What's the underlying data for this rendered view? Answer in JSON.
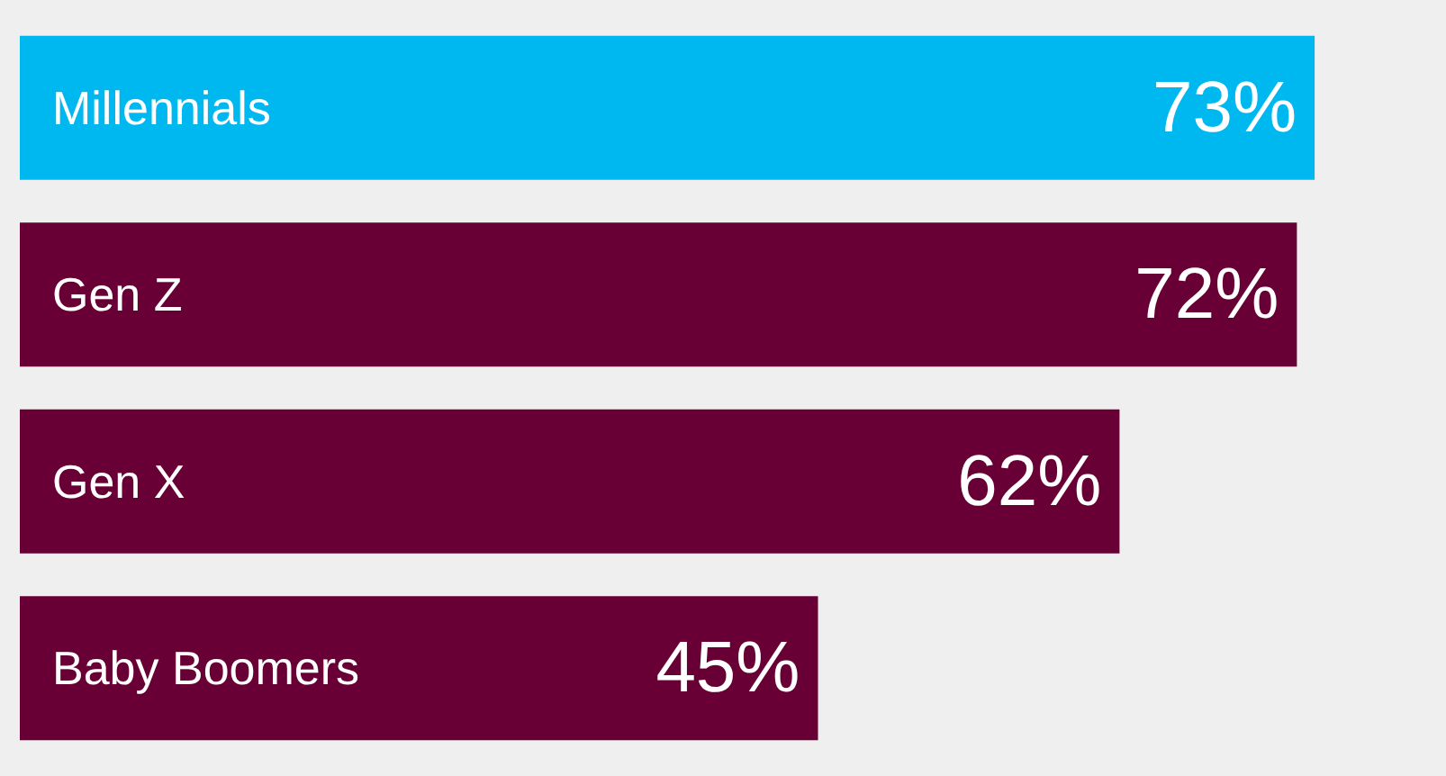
{
  "chart_data": {
    "type": "bar",
    "orientation": "horizontal",
    "categories": [
      "Millennials",
      "Gen Z",
      "Gen X",
      "Baby Boomers"
    ],
    "values": [
      73,
      72,
      62,
      45
    ],
    "value_labels": [
      "73%",
      "72%",
      "62%",
      "45%"
    ],
    "colors": [
      "#00b8f0",
      "#680035",
      "#680035",
      "#680035"
    ]
  }
}
